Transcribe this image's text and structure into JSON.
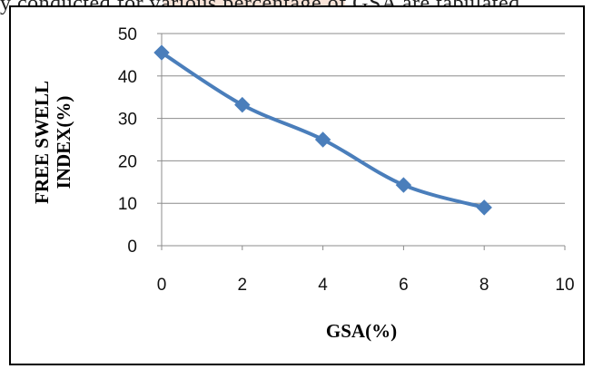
{
  "caption_fragment": "y conducted for various percentage of GSA are tabulated",
  "chart_data": {
    "type": "line",
    "title": "",
    "xlabel": "GSA(%)",
    "ylabel_lines": [
      "FREE SWELL",
      "INDEX(%)"
    ],
    "xlim": [
      0,
      10
    ],
    "ylim": [
      0,
      50
    ],
    "xticks": [
      0,
      2,
      4,
      6,
      8,
      10
    ],
    "yticks": [
      0,
      10,
      20,
      30,
      40,
      50
    ],
    "grid": "horizontal",
    "legend": "none",
    "series": [
      {
        "x": [
          0,
          2,
          4,
          6,
          8
        ],
        "y": [
          45.5,
          33.2,
          25,
          14.3,
          9
        ],
        "color": "#4a7ebb",
        "marker": "diamond"
      }
    ]
  }
}
